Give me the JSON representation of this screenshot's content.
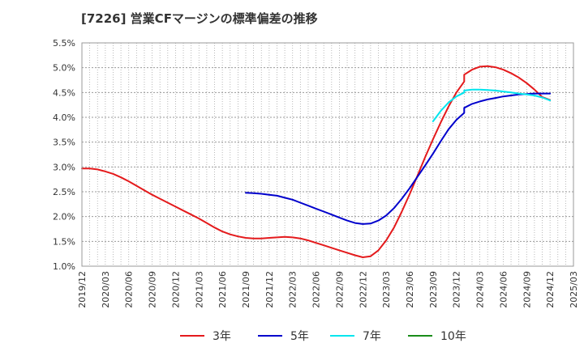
{
  "chart_data": {
    "type": "line",
    "title": "[7226]  営業CFマージンの標準偏差の推移",
    "xlabel": "",
    "ylabel": "",
    "x_ticks": [
      "2019/12",
      "2020/03",
      "2020/06",
      "2020/09",
      "2020/12",
      "2021/03",
      "2021/06",
      "2021/09",
      "2021/12",
      "2022/03",
      "2022/06",
      "2022/09",
      "2022/12",
      "2023/03",
      "2023/06",
      "2023/09",
      "2023/12",
      "2024/03",
      "2024/06",
      "2024/09",
      "2024/12",
      "2025/03"
    ],
    "y_ticks": [
      "1.0%",
      "1.5%",
      "2.0%",
      "2.5%",
      "3.0%",
      "3.5%",
      "4.0%",
      "4.5%",
      "5.0%",
      "5.5%"
    ],
    "ylim": [
      1.0,
      5.5
    ],
    "grid": true,
    "legend_position": "bottom",
    "series": [
      {
        "name": "3年",
        "color": "#e41a1c",
        "points": [
          [
            "2019/12",
            2.97
          ],
          [
            "2020/01",
            2.97
          ],
          [
            "2020/02",
            2.95
          ],
          [
            "2020/03",
            2.91
          ],
          [
            "2020/04",
            2.86
          ],
          [
            "2020/05",
            2.79
          ],
          [
            "2020/06",
            2.71
          ],
          [
            "2020/07",
            2.62
          ],
          [
            "2020/08",
            2.53
          ],
          [
            "2020/09",
            2.44
          ],
          [
            "2020/10",
            2.36
          ],
          [
            "2020/11",
            2.28
          ],
          [
            "2020/12",
            2.2
          ],
          [
            "2021/01",
            2.12
          ],
          [
            "2021/02",
            2.04
          ],
          [
            "2021/03",
            1.96
          ],
          [
            "2021/04",
            1.87
          ],
          [
            "2021/05",
            1.78
          ],
          [
            "2021/06",
            1.7
          ],
          [
            "2021/07",
            1.64
          ],
          [
            "2021/08",
            1.6
          ],
          [
            "2021/09",
            1.57
          ],
          [
            "2021/10",
            1.56
          ],
          [
            "2021/11",
            1.56
          ],
          [
            "2021/12",
            1.57
          ],
          [
            "2022/01",
            1.58
          ],
          [
            "2022/02",
            1.59
          ],
          [
            "2022/03",
            1.58
          ],
          [
            "2022/04",
            1.56
          ],
          [
            "2022/05",
            1.52
          ],
          [
            "2022/06",
            1.47
          ],
          [
            "2022/07",
            1.42
          ],
          [
            "2022/08",
            1.37
          ],
          [
            "2022/09",
            1.32
          ],
          [
            "2022/10",
            1.27
          ],
          [
            "2022/11",
            1.22
          ],
          [
            "2022/12",
            1.18
          ],
          [
            "2023/01",
            1.2
          ],
          [
            "2023/02",
            1.32
          ],
          [
            "2023/03",
            1.52
          ],
          [
            "2023/04",
            1.78
          ],
          [
            "2023/05",
            2.1
          ],
          [
            "2023/06",
            2.45
          ],
          [
            "2023/07",
            2.82
          ],
          [
            "2023/08",
            3.2
          ],
          [
            "2023/09",
            3.56
          ],
          [
            "2023/10",
            3.9
          ],
          [
            "2023/11",
            4.22
          ],
          [
            "2023/12",
            4.5
          ],
          [
            "2023/13",
            4.72
          ],
          [
            "2024/01",
            4.86
          ],
          [
            "2024/02",
            4.96
          ],
          [
            "2024/03",
            5.02
          ],
          [
            "2024/04",
            5.03
          ],
          [
            "2024/05",
            5.01
          ],
          [
            "2024/06",
            4.96
          ],
          [
            "2024/07",
            4.89
          ],
          [
            "2024/08",
            4.8
          ],
          [
            "2024/09",
            4.69
          ],
          [
            "2024/10",
            4.56
          ],
          [
            "2024/11",
            4.41
          ],
          [
            "2024/12",
            4.35
          ]
        ]
      },
      {
        "name": "5年",
        "color": "#0000cc",
        "points": [
          [
            "2021/09",
            2.48
          ],
          [
            "2021/10",
            2.47
          ],
          [
            "2021/11",
            2.46
          ],
          [
            "2021/12",
            2.44
          ],
          [
            "2022/01",
            2.42
          ],
          [
            "2022/02",
            2.38
          ],
          [
            "2022/03",
            2.34
          ],
          [
            "2022/04",
            2.28
          ],
          [
            "2022/05",
            2.22
          ],
          [
            "2022/06",
            2.16
          ],
          [
            "2022/07",
            2.1
          ],
          [
            "2022/08",
            2.04
          ],
          [
            "2022/09",
            1.98
          ],
          [
            "2022/10",
            1.92
          ],
          [
            "2022/11",
            1.87
          ],
          [
            "2022/12",
            1.85
          ],
          [
            "2023/01",
            1.86
          ],
          [
            "2023/02",
            1.92
          ],
          [
            "2023/03",
            2.02
          ],
          [
            "2023/04",
            2.17
          ],
          [
            "2023/05",
            2.36
          ],
          [
            "2023/06",
            2.57
          ],
          [
            "2023/07",
            2.8
          ],
          [
            "2023/08",
            3.03
          ],
          [
            "2023/09",
            3.27
          ],
          [
            "2023/10",
            3.52
          ],
          [
            "2023/11",
            3.76
          ],
          [
            "2023/12",
            3.95
          ],
          [
            "2023/13",
            4.09
          ],
          [
            "2024/01",
            4.19
          ],
          [
            "2024/02",
            4.27
          ],
          [
            "2024/03",
            4.32
          ],
          [
            "2024/04",
            4.36
          ],
          [
            "2024/05",
            4.39
          ],
          [
            "2024/06",
            4.42
          ],
          [
            "2024/07",
            4.44
          ],
          [
            "2024/08",
            4.46
          ],
          [
            "2024/09",
            4.47
          ],
          [
            "2024/10",
            4.48
          ],
          [
            "2024/11",
            4.48
          ],
          [
            "2024/12",
            4.48
          ]
        ]
      },
      {
        "name": "7年",
        "color": "#00e5ee",
        "points": [
          [
            "2023/09",
            3.92
          ],
          [
            "2023/10",
            4.13
          ],
          [
            "2023/11",
            4.3
          ],
          [
            "2023/12",
            4.42
          ],
          [
            "2023/13",
            4.5
          ],
          [
            "2024/01",
            4.54
          ],
          [
            "2024/02",
            4.56
          ],
          [
            "2024/03",
            4.56
          ],
          [
            "2024/04",
            4.55
          ],
          [
            "2024/05",
            4.54
          ],
          [
            "2024/06",
            4.52
          ],
          [
            "2024/07",
            4.5
          ],
          [
            "2024/08",
            4.48
          ],
          [
            "2024/09",
            4.46
          ],
          [
            "2024/10",
            4.44
          ],
          [
            "2024/11",
            4.4
          ],
          [
            "2024/12",
            4.34
          ]
        ]
      },
      {
        "name": "10年",
        "color": "#1a8c1a",
        "points": []
      }
    ]
  }
}
